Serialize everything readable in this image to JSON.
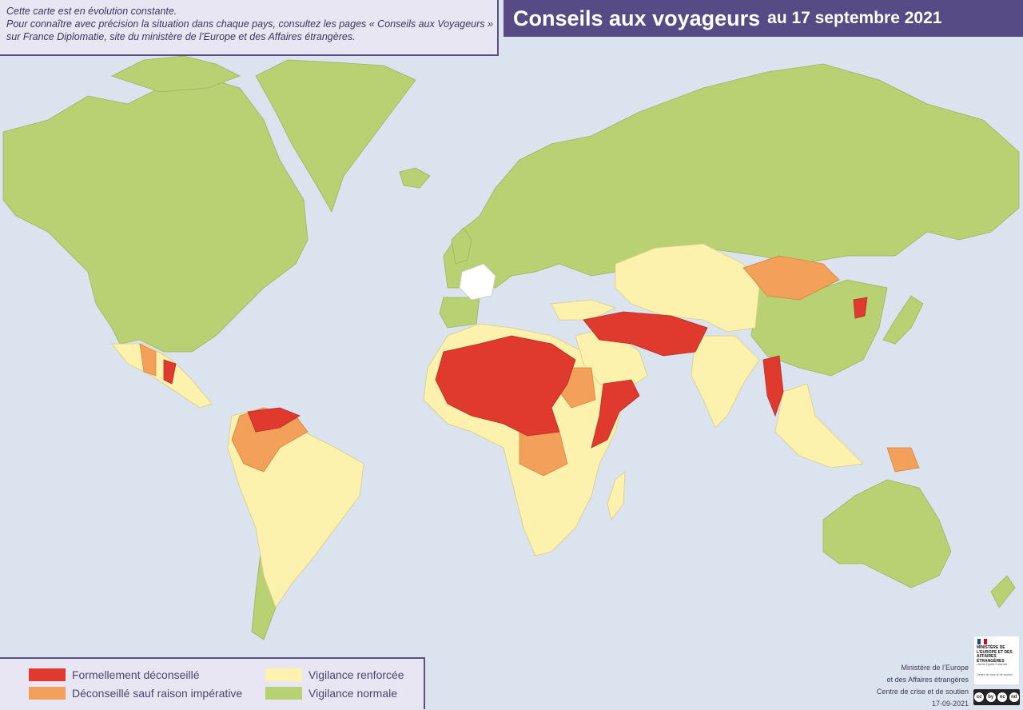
{
  "title": {
    "main": "Conseils aux voyageurs",
    "date": "au 17 septembre 2021"
  },
  "note": {
    "line1": "Cette carte est en évolution constante.",
    "line2": "Pour connaître avec précision la situation dans chaque pays, consultez les pages « Conseils aux Voyageurs »",
    "line3": "sur France Diplomatie, site du ministère de l’Europe et des Affaires étrangères."
  },
  "legend": {
    "items": [
      {
        "label": "Formellement déconseillé",
        "color": "#e03a2e"
      },
      {
        "label": "Déconseillé sauf raison impérative",
        "color": "#f2a05a"
      },
      {
        "label": "Vigilance renforcée",
        "color": "#fdf2ad"
      },
      {
        "label": "Vigilance normale",
        "color": "#b7d173"
      }
    ]
  },
  "credits": {
    "line1": "Ministère de l’Europe",
    "line2": "et des Affaires étrangères",
    "line3": "Centre de crise et de soutien",
    "date": "17-09-2021"
  },
  "logo": {
    "text": "MINISTÈRE DE L’EUROPE ET DES AFFAIRES ÉTRANGÈRES",
    "motto": "Liberté Égalité Fraternité",
    "sub": "Centre de crise et de soutien"
  },
  "license": {
    "marks": [
      "cc",
      "by",
      "nc",
      "nd"
    ]
  },
  "colors": {
    "ocean": "#dbe3ee",
    "normal": "#b7d173",
    "renforcee": "#fdf2ad",
    "deconseille": "#f2a05a",
    "formel": "#e03a2e",
    "france": "#ffffff",
    "border": "#5b4f86"
  }
}
